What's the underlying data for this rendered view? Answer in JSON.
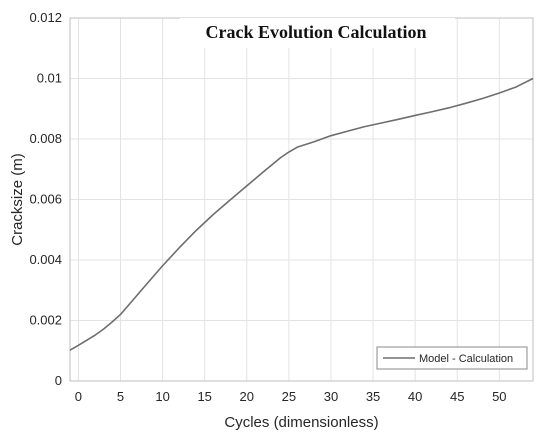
{
  "chart_data": {
    "type": "line",
    "title": "Crack Evolution Calculation",
    "xlabel": "Cycles (dimensionless)",
    "ylabel": "Cracksize (m)",
    "xlim": [
      -1,
      54
    ],
    "ylim": [
      0,
      0.012
    ],
    "x_ticks": [
      0,
      5,
      10,
      15,
      20,
      25,
      30,
      35,
      40,
      45,
      50
    ],
    "x_tick_labels": [
      "0",
      "5",
      "10",
      "15",
      "20",
      "25",
      "30",
      "35",
      "40",
      "45",
      "50"
    ],
    "y_ticks": [
      0,
      0.002,
      0.004,
      0.006,
      0.008,
      0.01,
      0.012
    ],
    "y_tick_labels": [
      "0",
      "0.002",
      "0.004",
      "0.006",
      "0.008",
      "0.01",
      "0.012"
    ],
    "grid": true,
    "legend_position": "bottom-right",
    "series": [
      {
        "name": "Model - Calculation",
        "color": "#6e6e6e",
        "x": [
          -1,
          0,
          1,
          2,
          3,
          4,
          5,
          6,
          8,
          10,
          12,
          14,
          16,
          18,
          20,
          22,
          23,
          24,
          25,
          26,
          28,
          30,
          32,
          34,
          36,
          38,
          40,
          42,
          44,
          46,
          48,
          50,
          52,
          54
        ],
        "y": [
          0.00102,
          0.00118,
          0.00135,
          0.00152,
          0.00172,
          0.00195,
          0.0022,
          0.00252,
          0.00317,
          0.00381,
          0.00441,
          0.00498,
          0.0055,
          0.00598,
          0.00645,
          0.00692,
          0.00715,
          0.00738,
          0.00757,
          0.00773,
          0.00791,
          0.00811,
          0.00826,
          0.00841,
          0.00853,
          0.00865,
          0.00878,
          0.0089,
          0.00903,
          0.00918,
          0.00934,
          0.00952,
          0.00972,
          0.01
        ]
      }
    ]
  }
}
